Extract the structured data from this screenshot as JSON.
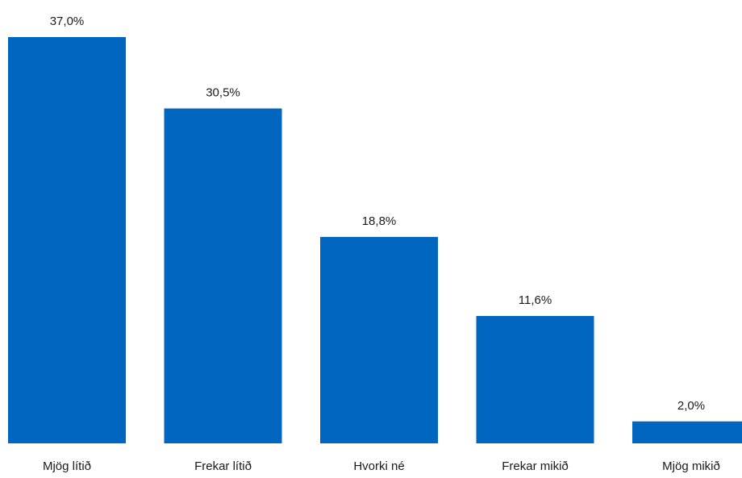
{
  "chart_data": {
    "type": "bar",
    "categories": [
      "Mjög lítið",
      "Frekar lítið",
      "Hvorki né",
      "Frekar mikið",
      "Mjög mikið"
    ],
    "values": [
      37.0,
      30.5,
      18.8,
      11.6,
      2.0
    ],
    "value_labels": [
      "37,0%",
      "30,5%",
      "18,8%",
      "11,6%",
      "2,0%"
    ],
    "title": "",
    "xlabel": "",
    "ylabel": "",
    "ylim": [
      0,
      37.0
    ],
    "grid": false,
    "legend": "none",
    "bar_color": "#0066c0"
  }
}
